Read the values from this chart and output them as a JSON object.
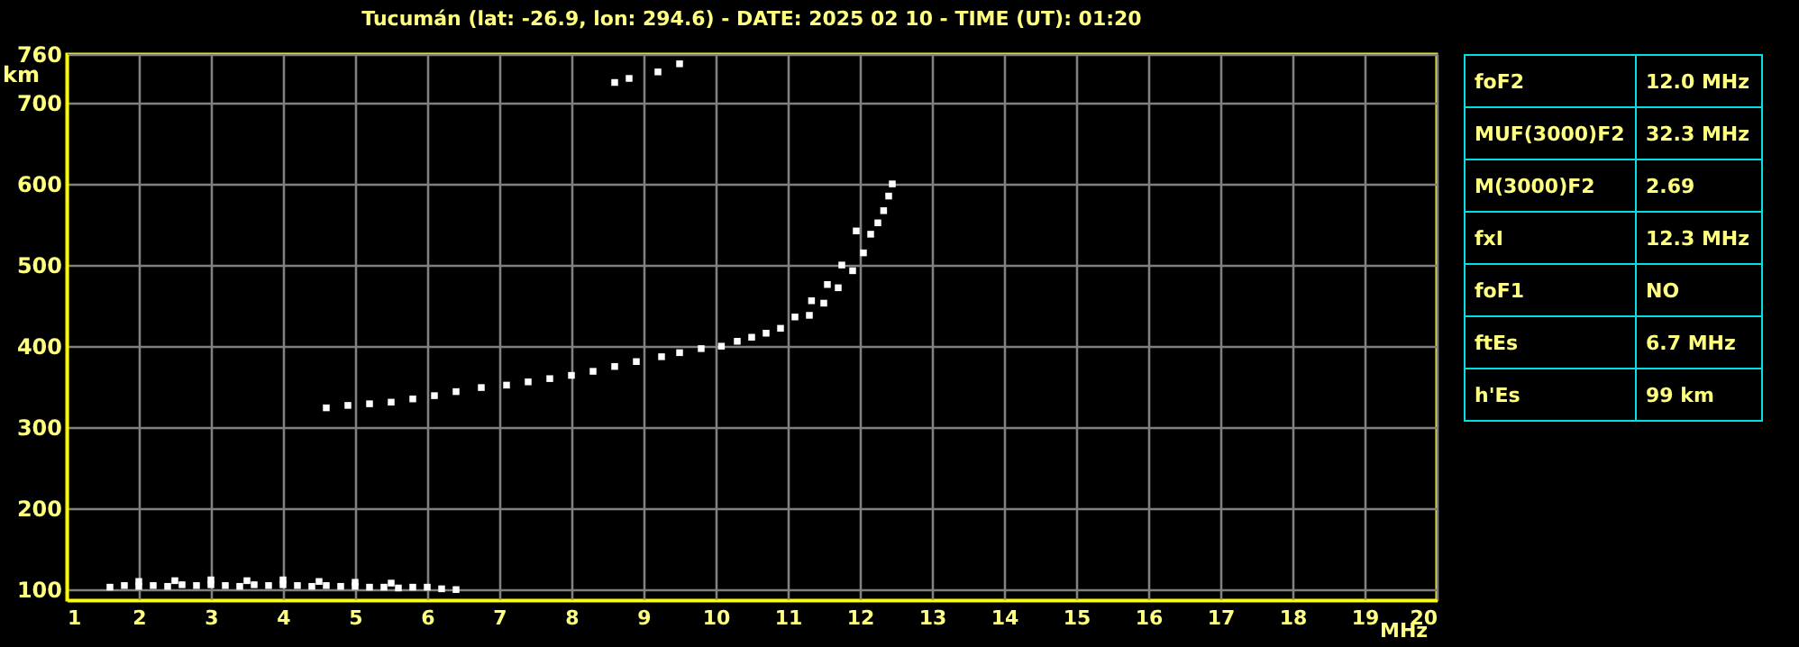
{
  "chart_data": [
    {
      "type": "scatter",
      "title": "Tucumán (lat: -26.9, lon: 294.6) - DATE: 2025 02 10 - TIME (UT): 01:20",
      "xlabel": "MHz",
      "ylabel": "km",
      "xlim": [
        1,
        20
      ],
      "xticks": [
        1,
        2,
        3,
        4,
        5,
        6,
        7,
        8,
        9,
        10,
        11,
        12,
        13,
        14,
        15,
        16,
        17,
        18,
        19,
        20
      ],
      "ylim": [
        87,
        760
      ],
      "yticks": [
        100,
        200,
        300,
        400,
        500,
        600,
        700,
        760
      ],
      "grid": true,
      "marker": "square",
      "series": [
        {
          "color": "#ffffff",
          "x": [
            4.6,
            4.9,
            5.2,
            5.5,
            5.8,
            6.1,
            6.4,
            6.75,
            7.1,
            7.4,
            7.7,
            8.0,
            8.3,
            8.6,
            8.9,
            9.25,
            9.5,
            9.8,
            10.08,
            10.3,
            10.5,
            10.7,
            10.9,
            11.1,
            11.33,
            11.55,
            11.75,
            11.95,
            11.3,
            11.5,
            11.7,
            11.9,
            12.05,
            12.15,
            12.25,
            12.33,
            12.4,
            12.45
          ],
          "values": [
            324,
            327,
            329,
            331,
            335,
            339,
            344,
            349,
            352,
            356,
            360,
            364,
            369,
            375,
            381,
            387,
            392,
            397,
            400,
            406,
            411,
            416,
            422,
            436,
            456,
            476,
            500,
            542,
            438,
            453,
            472,
            493,
            515,
            538,
            552,
            567,
            585,
            600
          ]
        },
        {
          "color": "#ffffff",
          "x": [
            1.6,
            1.8,
            2.0,
            2.2,
            2.4,
            2.6,
            2.8,
            3.0,
            3.2,
            3.4,
            3.6,
            3.8,
            4.0,
            4.2,
            4.4,
            4.6,
            4.8,
            5.0,
            5.2,
            5.4,
            5.6,
            5.8,
            6.0,
            6.2,
            6.4,
            2.0,
            2.5,
            3.0,
            3.5,
            4.0,
            4.5,
            5.0,
            5.5,
            8.6,
            8.8,
            9.2,
            9.5
          ],
          "values": [
            103,
            105,
            104,
            105,
            104,
            106,
            105,
            106,
            105,
            104,
            106,
            105,
            106,
            105,
            104,
            105,
            104,
            104,
            103,
            103,
            102,
            103,
            103,
            101,
            100,
            110,
            111,
            112,
            111,
            112,
            110,
            109,
            108,
            725,
            730,
            738,
            748
          ]
        }
      ]
    },
    {
      "type": "other",
      "annotations": [
        "foF2",
        "12.0 MHz",
        "MUF(3000)F2",
        "32.3 MHz",
        "M(3000)F2",
        "2.69",
        "fxI",
        "12.3 MHz",
        "foF1",
        "NO",
        "ftEs",
        "6.7 MHz",
        "h'Es",
        "99 km"
      ]
    }
  ]
}
